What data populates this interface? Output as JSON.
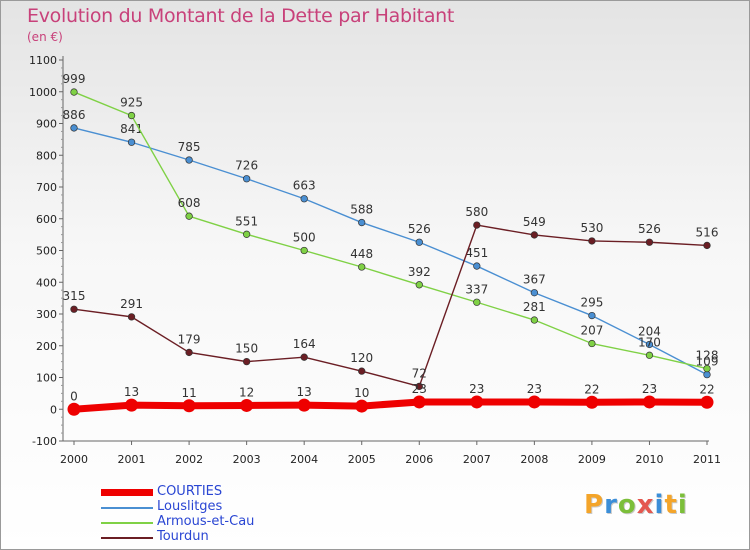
{
  "header": {
    "title": "Evolution du Montant de la Dette par Habitant",
    "unit": "(en €)"
  },
  "logo": {
    "text": "Proxiti",
    "colors": [
      "#f4a52a",
      "#3b8ed8",
      "#7cbf3a",
      "#e4574f",
      "#3b8ed8",
      "#f4a52a",
      "#7cbf3a"
    ]
  },
  "chart_data": {
    "type": "line",
    "title": "Evolution du Montant de la Dette par Habitant",
    "subtitle": "(en €)",
    "x": [
      "2000",
      "2001",
      "2002",
      "2003",
      "2004",
      "2005",
      "2006",
      "2007",
      "2008",
      "2009",
      "2010",
      "2011"
    ],
    "ylim": [
      -100,
      1100
    ],
    "yticks": [
      -100,
      0,
      100,
      200,
      300,
      400,
      500,
      600,
      700,
      800,
      900,
      1000,
      1100
    ],
    "ytick_labels": [
      "-100",
      "0",
      "100",
      "200",
      "300",
      "400",
      "500",
      "600",
      "700",
      "800",
      "900",
      "1000",
      "1100"
    ],
    "grid": false,
    "legend_position": "bottom-left",
    "series": [
      {
        "name": "COURTIES",
        "color": "#ee0000",
        "emphasis": true,
        "values": [
          0,
          13,
          11,
          12,
          13,
          10,
          23,
          23,
          23,
          22,
          23,
          22
        ],
        "labels": [
          "0",
          "13",
          "11",
          "12",
          "13",
          "10",
          "23",
          "23",
          "23",
          "22",
          "23",
          "22"
        ]
      },
      {
        "name": "Louslitges",
        "color": "#4a8fd2",
        "emphasis": false,
        "values": [
          886,
          841,
          785,
          726,
          663,
          588,
          526,
          451,
          367,
          295,
          204,
          109
        ],
        "labels": [
          "886",
          "841",
          "785",
          "726",
          "663",
          "588",
          "526",
          "451",
          "367",
          "295",
          "204",
          "109"
        ]
      },
      {
        "name": "Armous-et-Cau",
        "color": "#7fd145",
        "emphasis": false,
        "values": [
          999,
          925,
          608,
          551,
          500,
          448,
          392,
          337,
          281,
          207,
          170,
          128
        ],
        "labels": [
          "999",
          "925",
          "608",
          "551",
          "500",
          "448",
          "392",
          "337",
          "281",
          "207",
          "170",
          "128"
        ]
      },
      {
        "name": "Tourdun",
        "color": "#6b1e24",
        "emphasis": false,
        "values": [
          315,
          291,
          179,
          150,
          164,
          120,
          72,
          580,
          549,
          530,
          526,
          516
        ],
        "labels": [
          "315",
          "291",
          "179",
          "150",
          "164",
          "120",
          "72",
          "580",
          "549",
          "530",
          "526",
          "516"
        ]
      }
    ]
  }
}
